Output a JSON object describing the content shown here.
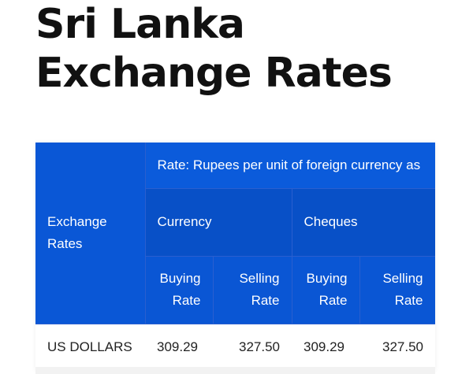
{
  "page": {
    "title": "Sri Lanka Exchange Rates"
  },
  "table": {
    "row_header": "Exchange Rates",
    "rate_note": "Rate: Rupees per unit of foreign currency as",
    "groups": [
      "Currency",
      "Cheques"
    ],
    "subheaders": [
      "Buying Rate",
      "Selling Rate",
      "Buying Rate",
      "Selling Rate"
    ],
    "rows": [
      {
        "currency": "US DOLLARS",
        "values": [
          "309.29",
          "327.50",
          "309.29",
          "327.50"
        ]
      }
    ]
  },
  "colors": {
    "header_blue": "#0a57d6",
    "header_dark_blue": "#0850c7",
    "title_text": "#111111"
  }
}
